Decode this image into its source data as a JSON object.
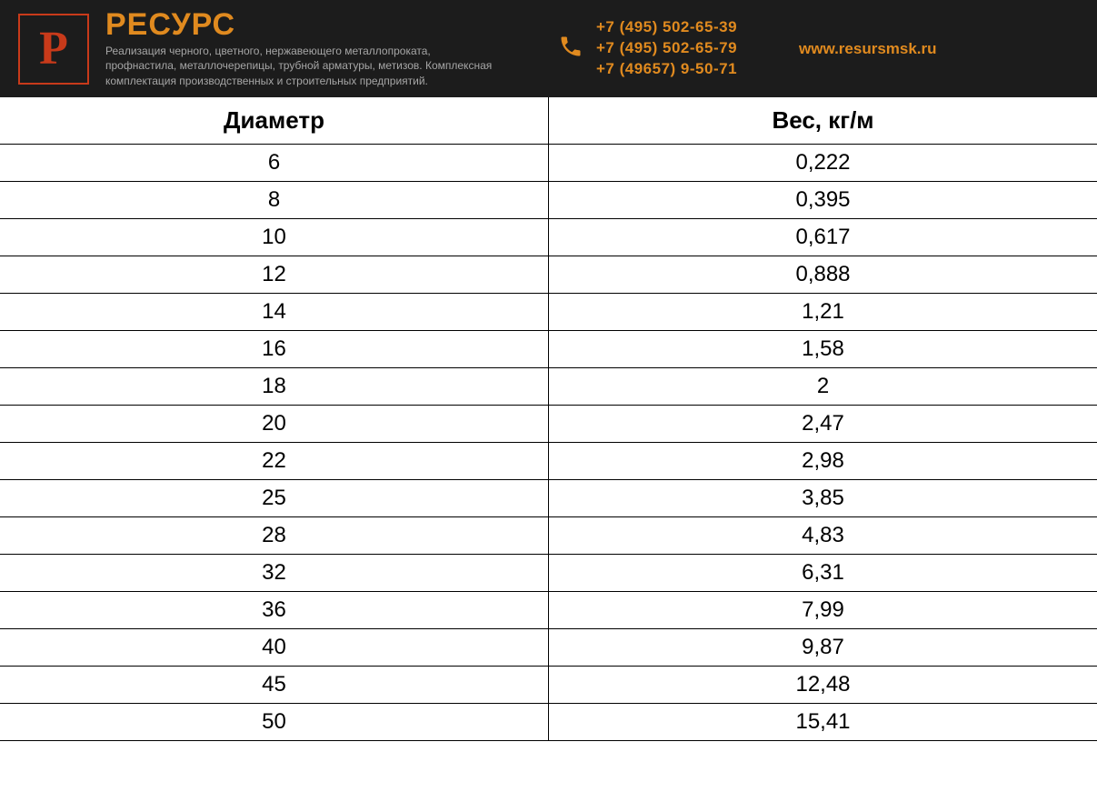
{
  "header": {
    "logo_letter": "Р",
    "brand_name": "РЕСУРС",
    "tagline": "Реализация черного, цветного, нержавеющего металлопроката, профнастила, металлочерепицы, трубной арматуры, метизов. Комплексная комплектация производственных и строительных предприятий.",
    "phones": [
      "+7 (495) 502-65-39",
      "+7 (495) 502-65-79",
      "+7 (49657) 9-50-71"
    ],
    "website": "www.resursmsk.ru",
    "colors": {
      "background": "#1c1c1c",
      "accent": "#e08a1f",
      "logo_border": "#c83a1a",
      "tagline_text": "#a6a6a6"
    }
  },
  "table": {
    "type": "table",
    "columns": [
      "Диаметр",
      "Вес, кг/м"
    ],
    "rows": [
      [
        "6",
        "0,222"
      ],
      [
        "8",
        "0,395"
      ],
      [
        "10",
        "0,617"
      ],
      [
        "12",
        "0,888"
      ],
      [
        "14",
        "1,21"
      ],
      [
        "16",
        "1,58"
      ],
      [
        "18",
        "2"
      ],
      [
        "20",
        "2,47"
      ],
      [
        "22",
        "2,98"
      ],
      [
        "25",
        "3,85"
      ],
      [
        "28",
        "4,83"
      ],
      [
        "32",
        "6,31"
      ],
      [
        "36",
        "7,99"
      ],
      [
        "40",
        "9,87"
      ],
      [
        "45",
        "12,48"
      ],
      [
        "50",
        "15,41"
      ]
    ],
    "header_fontsize": 26,
    "cell_fontsize": 24,
    "border_color": "#000000",
    "text_color": "#000000",
    "background_color": "#ffffff",
    "column_widths_pct": [
      50,
      50
    ],
    "alignment": [
      "center",
      "center"
    ]
  }
}
